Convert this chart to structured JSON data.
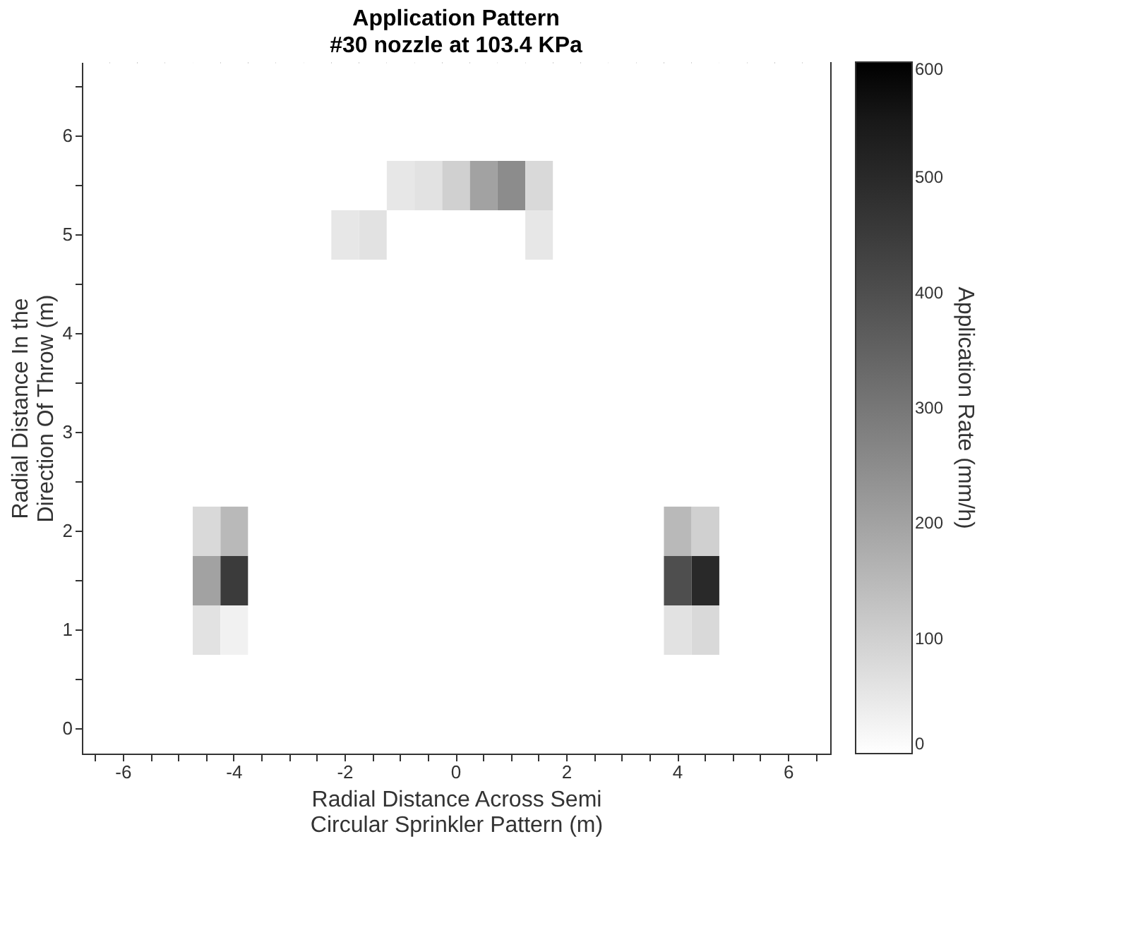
{
  "chart_data": {
    "type": "heatmap",
    "title": "Application Pattern",
    "subtitle": "#30 nozzle at 103.4 KPa",
    "xlabel": "Radial Distance Across Semi\nCircular Sprinkler Pattern (m)",
    "ylabel": "Radial Distance In the\nDirection Of Throw (m)",
    "clabel": "Application Rate (mm/h)",
    "categories": [
      null,
      "-6",
      null,
      null,
      null,
      "-4",
      null,
      null,
      null,
      "-2",
      null,
      null,
      null,
      "0",
      null,
      null,
      null,
      "2",
      null,
      null,
      null,
      "4",
      null,
      null,
      null,
      "6",
      null
    ],
    "y_categories": [
      null,
      "6",
      null,
      "5",
      null,
      "4",
      null,
      "3",
      null,
      "2",
      null,
      "1",
      null,
      "0"
    ],
    "cells": [
      [
        0,
        0,
        0,
        0,
        0,
        0,
        0,
        0,
        0,
        0,
        0,
        0,
        0,
        0,
        0,
        0,
        0,
        0,
        0,
        0,
        0,
        0,
        0,
        0,
        0,
        0,
        0
      ],
      [
        0,
        0,
        0,
        0,
        0,
        0,
        0,
        0,
        0,
        0,
        0,
        0,
        0,
        0,
        0,
        0,
        0,
        0,
        0,
        0,
        0,
        0,
        0,
        0,
        0,
        0,
        0
      ],
      [
        0,
        0,
        0,
        0,
        0,
        0,
        0,
        0,
        0,
        0,
        0,
        50,
        60,
        100,
        200,
        250,
        80,
        0,
        0,
        0,
        0,
        0,
        0,
        0,
        0,
        0,
        0
      ],
      [
        0,
        0,
        0,
        0,
        0,
        0,
        0,
        0,
        0,
        50,
        60,
        0,
        0,
        0,
        0,
        0,
        50,
        0,
        0,
        0,
        0,
        0,
        0,
        0,
        0,
        0,
        0
      ],
      [
        0,
        0,
        0,
        0,
        0,
        0,
        0,
        0,
        0,
        0,
        0,
        0,
        0,
        0,
        0,
        0,
        0,
        0,
        0,
        0,
        0,
        0,
        0,
        0,
        0,
        0,
        0
      ],
      [
        0,
        0,
        0,
        0,
        0,
        0,
        0,
        0,
        0,
        0,
        0,
        0,
        0,
        0,
        0,
        0,
        0,
        0,
        0,
        0,
        0,
        0,
        0,
        0,
        0,
        0,
        0
      ],
      [
        0,
        0,
        0,
        0,
        0,
        0,
        0,
        0,
        0,
        0,
        0,
        0,
        0,
        0,
        0,
        0,
        0,
        0,
        0,
        0,
        0,
        0,
        0,
        0,
        0,
        0,
        0
      ],
      [
        0,
        0,
        0,
        0,
        0,
        0,
        0,
        0,
        0,
        0,
        0,
        0,
        0,
        0,
        0,
        0,
        0,
        0,
        0,
        0,
        0,
        0,
        0,
        0,
        0,
        0,
        0
      ],
      [
        0,
        0,
        0,
        0,
        0,
        0,
        0,
        0,
        0,
        0,
        0,
        0,
        0,
        0,
        0,
        0,
        0,
        0,
        0,
        0,
        0,
        0,
        0,
        0,
        0,
        0,
        0
      ],
      [
        0,
        0,
        0,
        0,
        80,
        150,
        0,
        0,
        0,
        0,
        0,
        0,
        0,
        0,
        0,
        0,
        0,
        0,
        0,
        0,
        0,
        150,
        100,
        0,
        0,
        0,
        0
      ],
      [
        0,
        0,
        0,
        0,
        200,
        450,
        0,
        0,
        0,
        0,
        0,
        0,
        0,
        0,
        0,
        0,
        0,
        0,
        0,
        0,
        0,
        400,
        500,
        0,
        0,
        0,
        0
      ],
      [
        0,
        0,
        0,
        0,
        60,
        30,
        0,
        0,
        0,
        0,
        0,
        0,
        0,
        0,
        0,
        0,
        0,
        0,
        0,
        0,
        0,
        60,
        80,
        0,
        0,
        0,
        0
      ],
      [
        0,
        0,
        0,
        0,
        0,
        0,
        0,
        0,
        0,
        0,
        0,
        0,
        0,
        0,
        0,
        0,
        0,
        0,
        0,
        0,
        0,
        0,
        0,
        0,
        0,
        0,
        0
      ],
      [
        0,
        0,
        0,
        0,
        0,
        0,
        0,
        0,
        0,
        0,
        0,
        0,
        0,
        0,
        0,
        0,
        0,
        0,
        0,
        0,
        0,
        0,
        0,
        0,
        0,
        0,
        0
      ]
    ],
    "clim": [
      0,
      600
    ],
    "cticks": [
      0,
      100,
      200,
      300,
      400,
      500,
      600
    ],
    "grid": false
  }
}
